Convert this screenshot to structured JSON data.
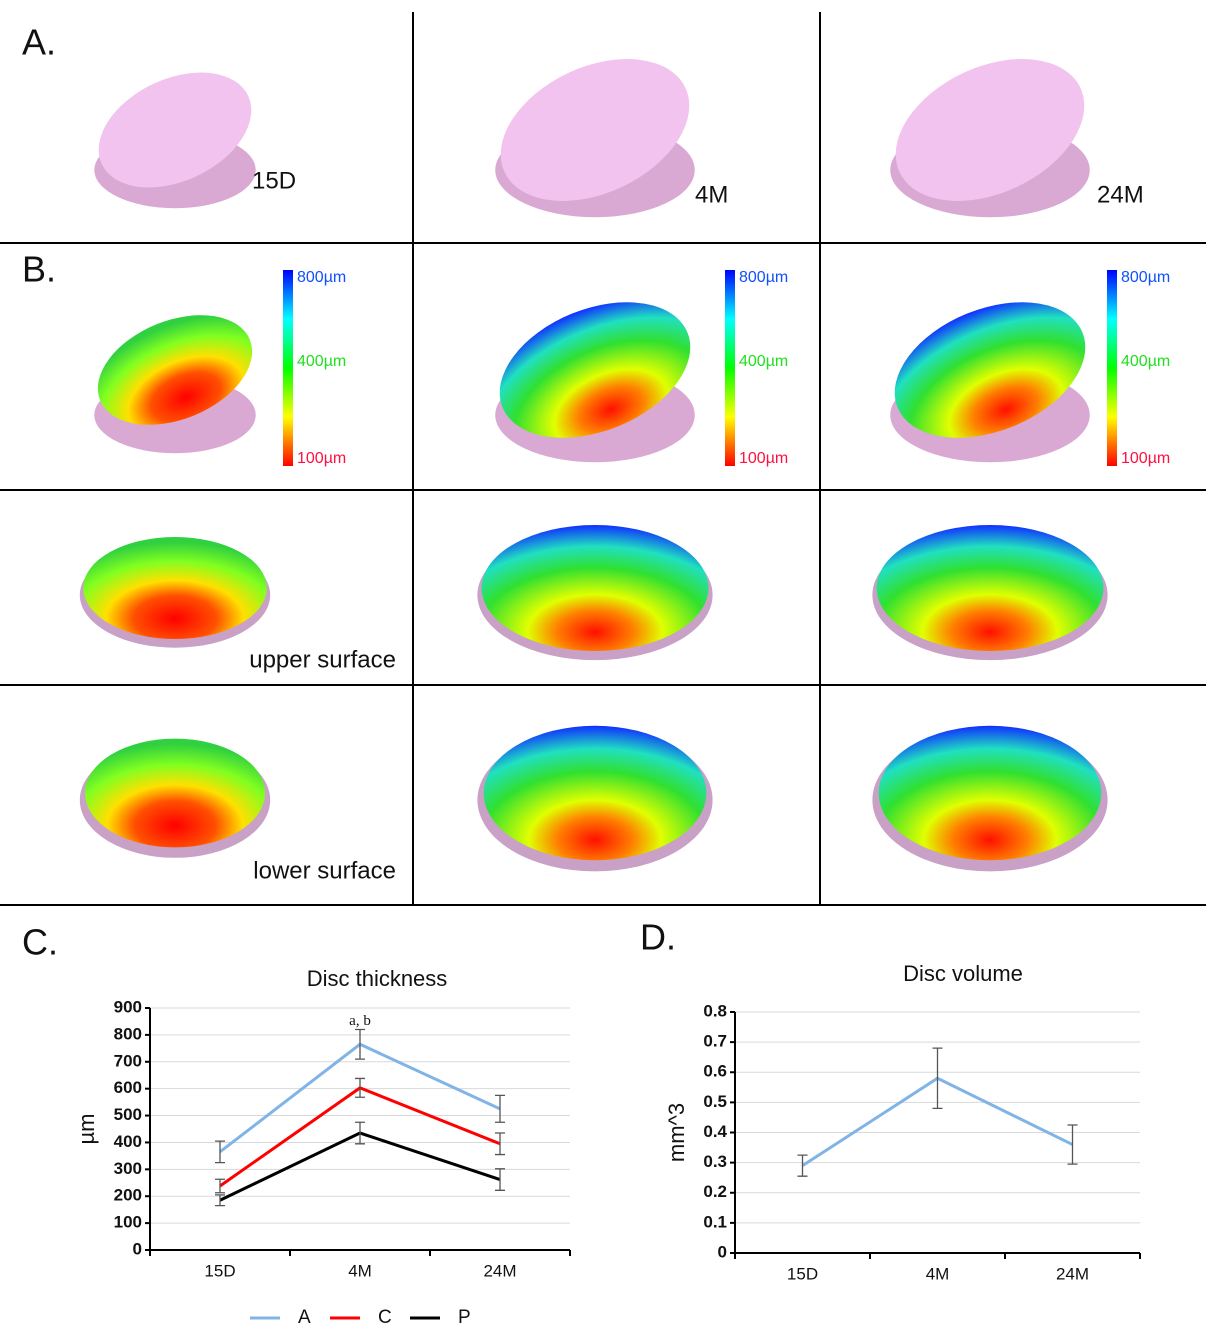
{
  "panels": {
    "a": {
      "label": "A.",
      "stages": [
        "15D",
        "4M",
        "24M"
      ]
    },
    "b": {
      "label": "B.",
      "scale": [
        "800µm",
        "400µm",
        "100µm"
      ],
      "rows": [
        "upper surface",
        "lower surface"
      ]
    }
  },
  "chart_data": [
    {
      "type": "line",
      "panel": "C.",
      "title": "Disc thickness",
      "y_label": "µm",
      "categories": [
        "15D",
        "4M",
        "24M"
      ],
      "series": [
        {
          "name": "A",
          "color": "#80b4e6",
          "values": [
            365,
            765,
            525
          ],
          "errors": [
            40,
            55,
            50
          ]
        },
        {
          "name": "C",
          "color": "#ff0000",
          "values": [
            238,
            603,
            395
          ],
          "errors": [
            25,
            35,
            40
          ]
        },
        {
          "name": "P",
          "color": "#000000",
          "values": [
            185,
            435,
            262
          ],
          "errors": [
            20,
            40,
            40
          ]
        }
      ],
      "annotations": [
        "a, b"
      ],
      "ylim": [
        0,
        900
      ],
      "yticks": [
        0,
        100,
        200,
        300,
        400,
        500,
        600,
        700,
        800,
        900
      ],
      "grid": true,
      "legend": "bottom"
    },
    {
      "type": "line",
      "panel": "D.",
      "title": "Disc volume",
      "y_label": "mm^3",
      "categories": [
        "15D",
        "4M",
        "24M"
      ],
      "series": [
        {
          "color": "#80b4e6",
          "values": [
            0.29,
            0.58,
            0.36
          ],
          "errors": [
            0.035,
            0.1,
            0.065
          ]
        }
      ],
      "ylim": [
        0,
        0.8
      ],
      "yticks": [
        0,
        0.1,
        0.2,
        0.3,
        0.4,
        0.5,
        0.6,
        0.7,
        0.8
      ],
      "grid": true
    }
  ]
}
